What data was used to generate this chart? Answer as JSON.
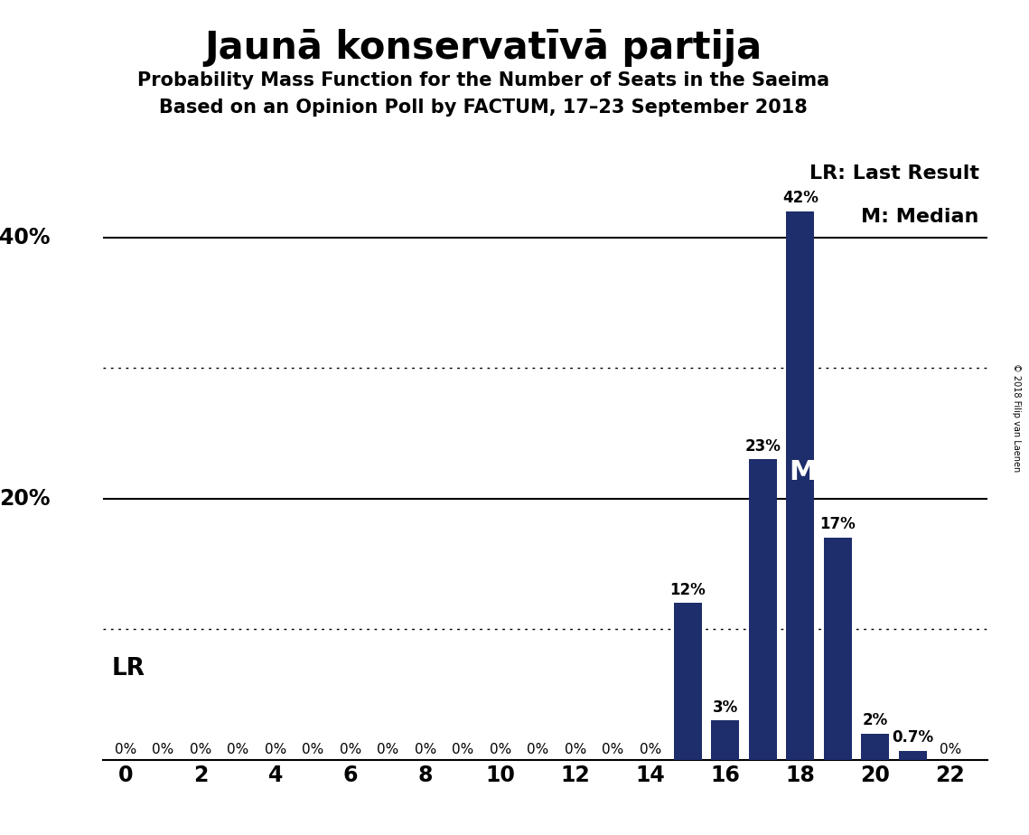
{
  "title": "Jaunā konservatīvā partija",
  "subtitle1": "Probability Mass Function for the Number of Seats in the Saeima",
  "subtitle2": "Based on an Opinion Poll by FACTUM, 17–23 September 2018",
  "copyright": "© 2018 Filip van Laenen",
  "seats": [
    0,
    1,
    2,
    3,
    4,
    5,
    6,
    7,
    8,
    9,
    10,
    11,
    12,
    13,
    14,
    15,
    16,
    17,
    18,
    19,
    20,
    21,
    22
  ],
  "probabilities": [
    0,
    0,
    0,
    0,
    0,
    0,
    0,
    0,
    0,
    0,
    0,
    0,
    0,
    0,
    0,
    12,
    3,
    23,
    42,
    17,
    2,
    0.7,
    0
  ],
  "bar_color": "#1e2d6b",
  "median_seat": 18,
  "xlim": [
    -0.6,
    23.0
  ],
  "ylim": [
    0,
    47
  ],
  "xticks": [
    0,
    2,
    4,
    6,
    8,
    10,
    12,
    14,
    16,
    18,
    20,
    22
  ],
  "solid_gridlines": [
    20,
    40
  ],
  "dotted_gridlines": [
    10,
    30
  ],
  "background_color": "#ffffff",
  "bar_width": 0.75,
  "title_fontsize": 30,
  "subtitle_fontsize": 15,
  "tick_label_fontsize": 17,
  "bar_label_fontsize": 12,
  "ytick_values": [
    20,
    40
  ],
  "ytick_labels": [
    "20%",
    "40%"
  ],
  "legend_fontsize": 16,
  "lr_label": "LR",
  "m_label": "M",
  "lr_legend": "LR: Last Result",
  "m_legend": "M: Median"
}
